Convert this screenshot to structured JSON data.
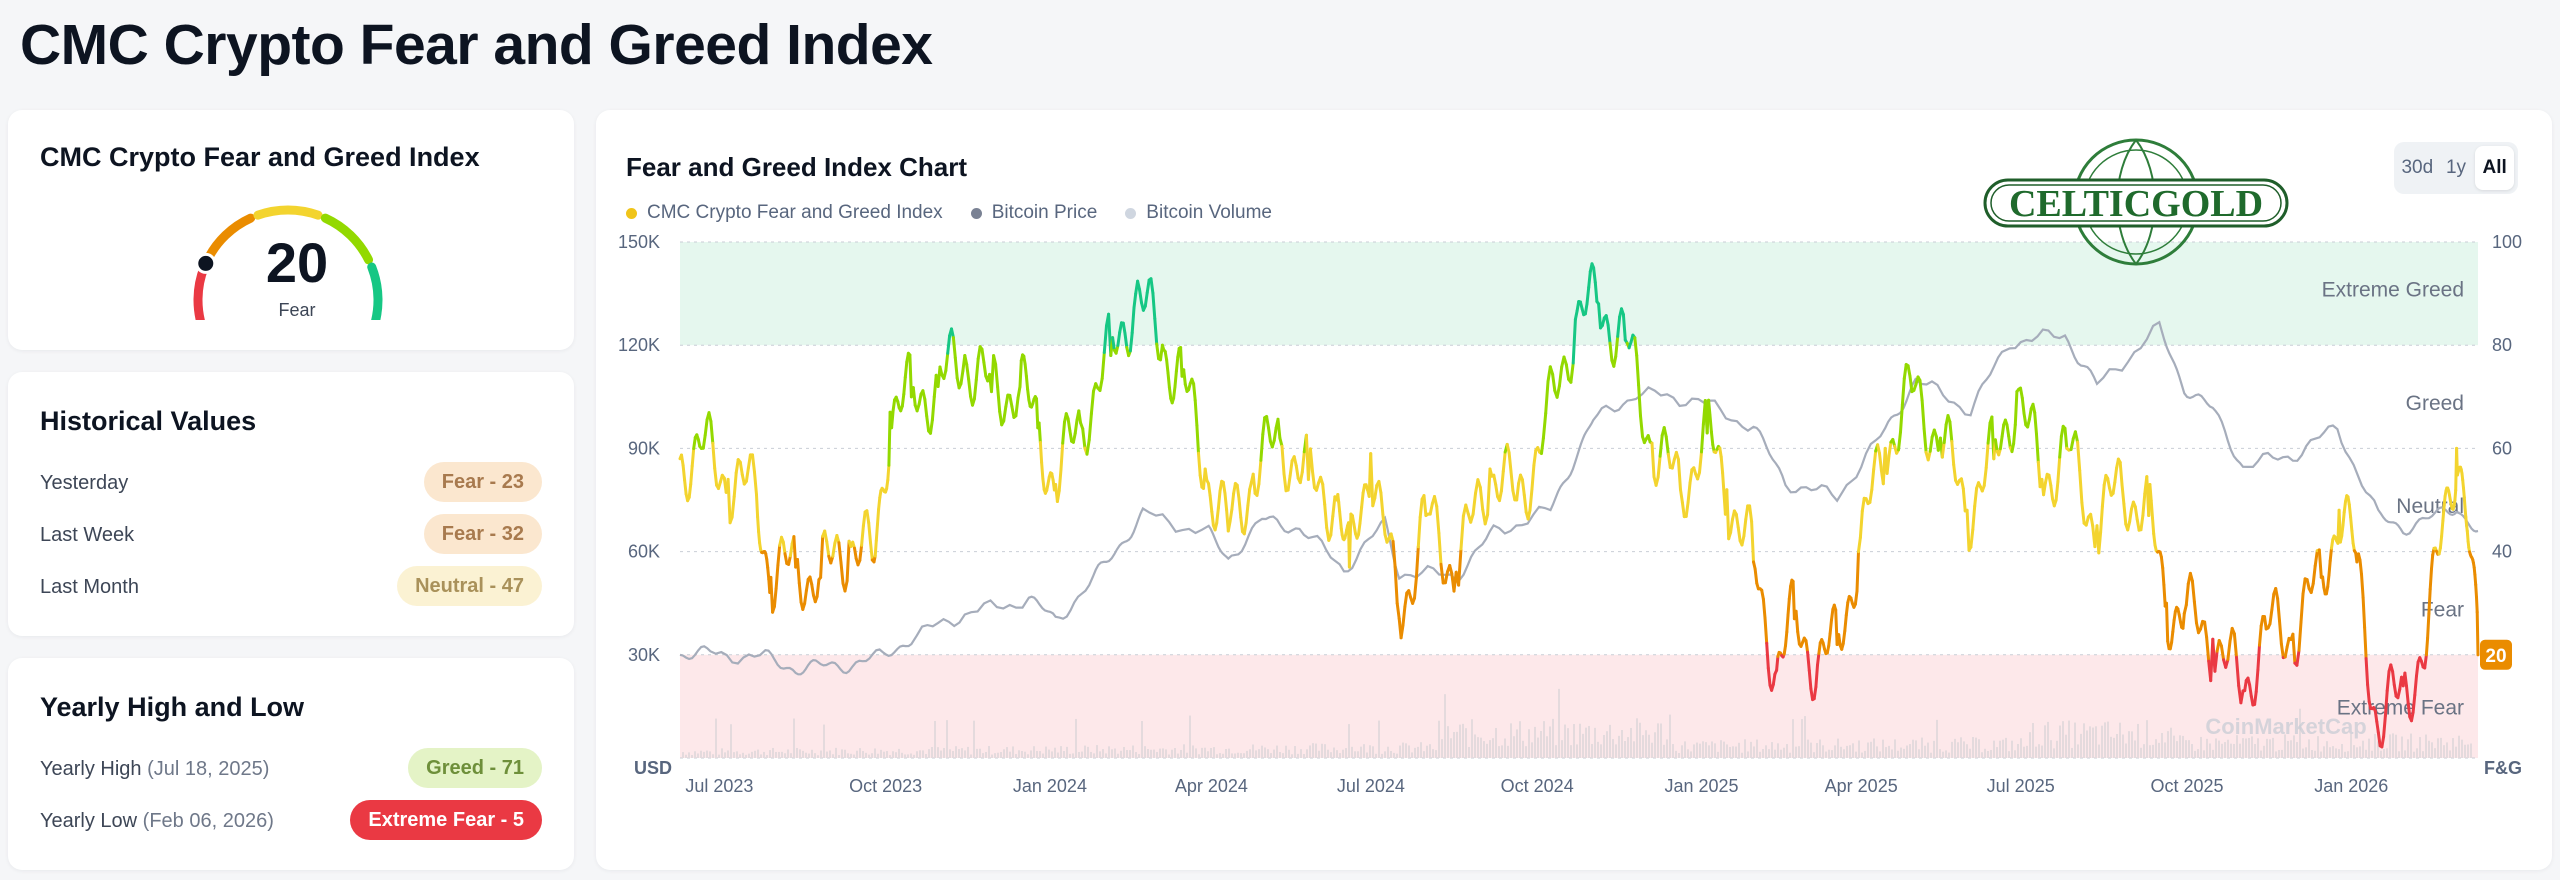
{
  "page": {
    "title": "CMC Crypto Fear and Greed Index"
  },
  "gauge": {
    "title": "CMC Crypto Fear and Greed Index",
    "value": "20",
    "value_num": 20,
    "label": "Fear",
    "colors": [
      "#ea3943",
      "#ea8c00",
      "#f3d42f",
      "#93d900",
      "#16c784"
    ]
  },
  "historical": {
    "title": "Historical Values",
    "rows": [
      {
        "label": "Yesterday",
        "badge": "Fear - 23"
      },
      {
        "label": "Last Week",
        "badge": "Fear - 32"
      },
      {
        "label": "Last Month",
        "badge": "Neutral - 47"
      }
    ]
  },
  "yearly": {
    "title": "Yearly High and Low",
    "high": {
      "label": "Yearly High",
      "date": "(Jul 18, 2025)",
      "badge": "Greed - 71"
    },
    "low": {
      "label": "Yearly Low",
      "date": "(Feb 06, 2026)",
      "badge": "Extreme Fear - 5"
    }
  },
  "chart": {
    "title": "Fear and Greed Index Chart",
    "legend": [
      {
        "name": "CMC Crypto Fear and Greed Index",
        "color": "#f0c419"
      },
      {
        "name": "Bitcoin Price",
        "color": "#7a8294"
      },
      {
        "name": "Bitcoin Volume",
        "color": "#cfd6e0"
      }
    ],
    "range_tabs": [
      "30d",
      "1y",
      "All"
    ],
    "active_tab": "All",
    "watermark_logo": "CELTICGOLD",
    "watermark": "CoinMarketCap",
    "current_value": "20"
  },
  "chart_data": {
    "type": "line",
    "title": "Fear and Greed Index Chart",
    "x_ticks": [
      "Jul 2023",
      "Oct 2023",
      "Jan 2024",
      "Apr 2024",
      "Jul 2024",
      "Oct 2024",
      "Jan 2025",
      "Apr 2025",
      "Jul 2025",
      "Oct 2025",
      "Jan 2026"
    ],
    "y_left": {
      "unit_label": "USD",
      "ticks": [
        "30K",
        "60K",
        "90K",
        "120K",
        "150K"
      ],
      "range": [
        0,
        150000
      ]
    },
    "y_right": {
      "unit_label": "F&G",
      "ticks": [
        "20",
        "40",
        "60",
        "80",
        "100"
      ],
      "range": [
        0,
        100
      ]
    },
    "zones": [
      "Extreme Greed",
      "Greed",
      "Neutral",
      "Fear",
      "Extreme Fear"
    ],
    "zone_bounds": [
      [
        80,
        100
      ],
      [
        60,
        80
      ],
      [
        40,
        60
      ],
      [
        20,
        40
      ],
      [
        0,
        20
      ]
    ],
    "x_range": [
      "2023-06-28",
      "2026-04-03"
    ],
    "series": [
      {
        "name": "CMC Crypto Fear and Greed Index",
        "points": [
          [
            "2023-06-28",
            58
          ],
          [
            "2023-07-10",
            60
          ],
          [
            "2023-07-25",
            54
          ],
          [
            "2023-08-10",
            51
          ],
          [
            "2023-08-18",
            35
          ],
          [
            "2023-09-01",
            37
          ],
          [
            "2023-09-15",
            35
          ],
          [
            "2023-10-01",
            42
          ],
          [
            "2023-10-15",
            38
          ],
          [
            "2023-10-24",
            67
          ],
          [
            "2023-11-05",
            70
          ],
          [
            "2023-11-20",
            72
          ],
          [
            "2023-12-05",
            78
          ],
          [
            "2023-12-20",
            71
          ],
          [
            "2024-01-05",
            72
          ],
          [
            "2024-01-15",
            64
          ],
          [
            "2024-01-25",
            53
          ],
          [
            "2024-02-08",
            65
          ],
          [
            "2024-02-25",
            78
          ],
          [
            "2024-03-10",
            90
          ],
          [
            "2024-03-25",
            80
          ],
          [
            "2024-04-05",
            74
          ],
          [
            "2024-04-18",
            56
          ],
          [
            "2024-05-01",
            44
          ],
          [
            "2024-05-15",
            55
          ],
          [
            "2024-05-30",
            62
          ],
          [
            "2024-06-15",
            54
          ],
          [
            "2024-07-01",
            50
          ],
          [
            "2024-07-08",
            37
          ],
          [
            "2024-07-20",
            59
          ],
          [
            "2024-08-05",
            27
          ],
          [
            "2024-08-20",
            47
          ],
          [
            "2024-09-06",
            36
          ],
          [
            "2024-09-25",
            56
          ],
          [
            "2024-10-10",
            50
          ],
          [
            "2024-10-25",
            62
          ],
          [
            "2024-11-12",
            85
          ],
          [
            "2024-11-25",
            88
          ],
          [
            "2024-12-10",
            81
          ],
          [
            "2024-12-25",
            61
          ],
          [
            "2025-01-10",
            52
          ],
          [
            "2025-01-25",
            63
          ],
          [
            "2025-02-05",
            52
          ],
          [
            "2025-02-20",
            38
          ],
          [
            "2025-03-05",
            17
          ],
          [
            "2025-03-15",
            27
          ],
          [
            "2025-03-28",
            18
          ],
          [
            "2025-04-08",
            22
          ],
          [
            "2025-04-20",
            40
          ],
          [
            "2025-05-05",
            60
          ],
          [
            "2025-05-20",
            71
          ],
          [
            "2025-06-05",
            62
          ],
          [
            "2025-06-20",
            48
          ],
          [
            "2025-07-05",
            58
          ],
          [
            "2025-07-18",
            71
          ],
          [
            "2025-08-01",
            54
          ],
          [
            "2025-08-15",
            60
          ],
          [
            "2025-09-01",
            45
          ],
          [
            "2025-09-15",
            53
          ],
          [
            "2025-09-30",
            47
          ],
          [
            "2025-10-10",
            30
          ],
          [
            "2025-10-20",
            28
          ],
          [
            "2025-11-05",
            23
          ],
          [
            "2025-11-22",
            13
          ],
          [
            "2025-12-05",
            25
          ],
          [
            "2025-12-20",
            24
          ],
          [
            "2026-01-05",
            35
          ],
          [
            "2026-01-15",
            48
          ],
          [
            "2026-01-25",
            38
          ],
          [
            "2026-02-06",
            5
          ],
          [
            "2026-02-20",
            14
          ],
          [
            "2026-03-05",
            20
          ],
          [
            "2026-03-15",
            49
          ],
          [
            "2026-03-22",
            60
          ],
          [
            "2026-03-28",
            44
          ],
          [
            "2026-04-03",
            20
          ]
        ]
      },
      {
        "name": "Bitcoin Price",
        "points": [
          [
            "2023-06-28",
            30500
          ],
          [
            "2023-07-15",
            30200
          ],
          [
            "2023-08-15",
            29200
          ],
          [
            "2023-09-01",
            26000
          ],
          [
            "2023-09-15",
            26500
          ],
          [
            "2023-10-01",
            27200
          ],
          [
            "2023-10-20",
            29500
          ],
          [
            "2023-11-05",
            35000
          ],
          [
            "2023-12-05",
            42000
          ],
          [
            "2024-01-10",
            46000
          ],
          [
            "2024-01-25",
            40000
          ],
          [
            "2024-02-15",
            51500
          ],
          [
            "2024-03-01",
            62000
          ],
          [
            "2024-03-14",
            71000
          ],
          [
            "2024-04-20",
            65000
          ],
          [
            "2024-05-01",
            58000
          ],
          [
            "2024-05-20",
            69000
          ],
          [
            "2024-06-10",
            67000
          ],
          [
            "2024-07-05",
            55000
          ],
          [
            "2024-07-28",
            68000
          ],
          [
            "2024-08-05",
            54000
          ],
          [
            "2024-09-06",
            53000
          ],
          [
            "2024-09-27",
            65500
          ],
          [
            "2024-10-29",
            72000
          ],
          [
            "2024-11-12",
            88000
          ],
          [
            "2024-11-22",
            98000
          ],
          [
            "2024-12-16",
            106000
          ],
          [
            "2025-01-20",
            104000
          ],
          [
            "2025-02-20",
            96000
          ],
          [
            "2025-03-10",
            80000
          ],
          [
            "2025-04-08",
            76000
          ],
          [
            "2025-05-05",
            95000
          ],
          [
            "2025-05-22",
            110000
          ],
          [
            "2025-06-22",
            101000
          ],
          [
            "2025-07-14",
            121000
          ],
          [
            "2025-08-14",
            123000
          ],
          [
            "2025-09-01",
            108000
          ],
          [
            "2025-10-06",
            125000
          ],
          [
            "2025-10-20",
            108000
          ],
          [
            "2025-11-05",
            101000
          ],
          [
            "2025-11-22",
            85000
          ],
          [
            "2025-12-20",
            88000
          ],
          [
            "2026-01-14",
            96000
          ],
          [
            "2026-02-06",
            70000
          ],
          [
            "2026-02-20",
            67000
          ],
          [
            "2026-03-10",
            70000
          ],
          [
            "2026-03-22",
            73000
          ],
          [
            "2026-04-03",
            66000
          ]
        ]
      }
    ]
  }
}
